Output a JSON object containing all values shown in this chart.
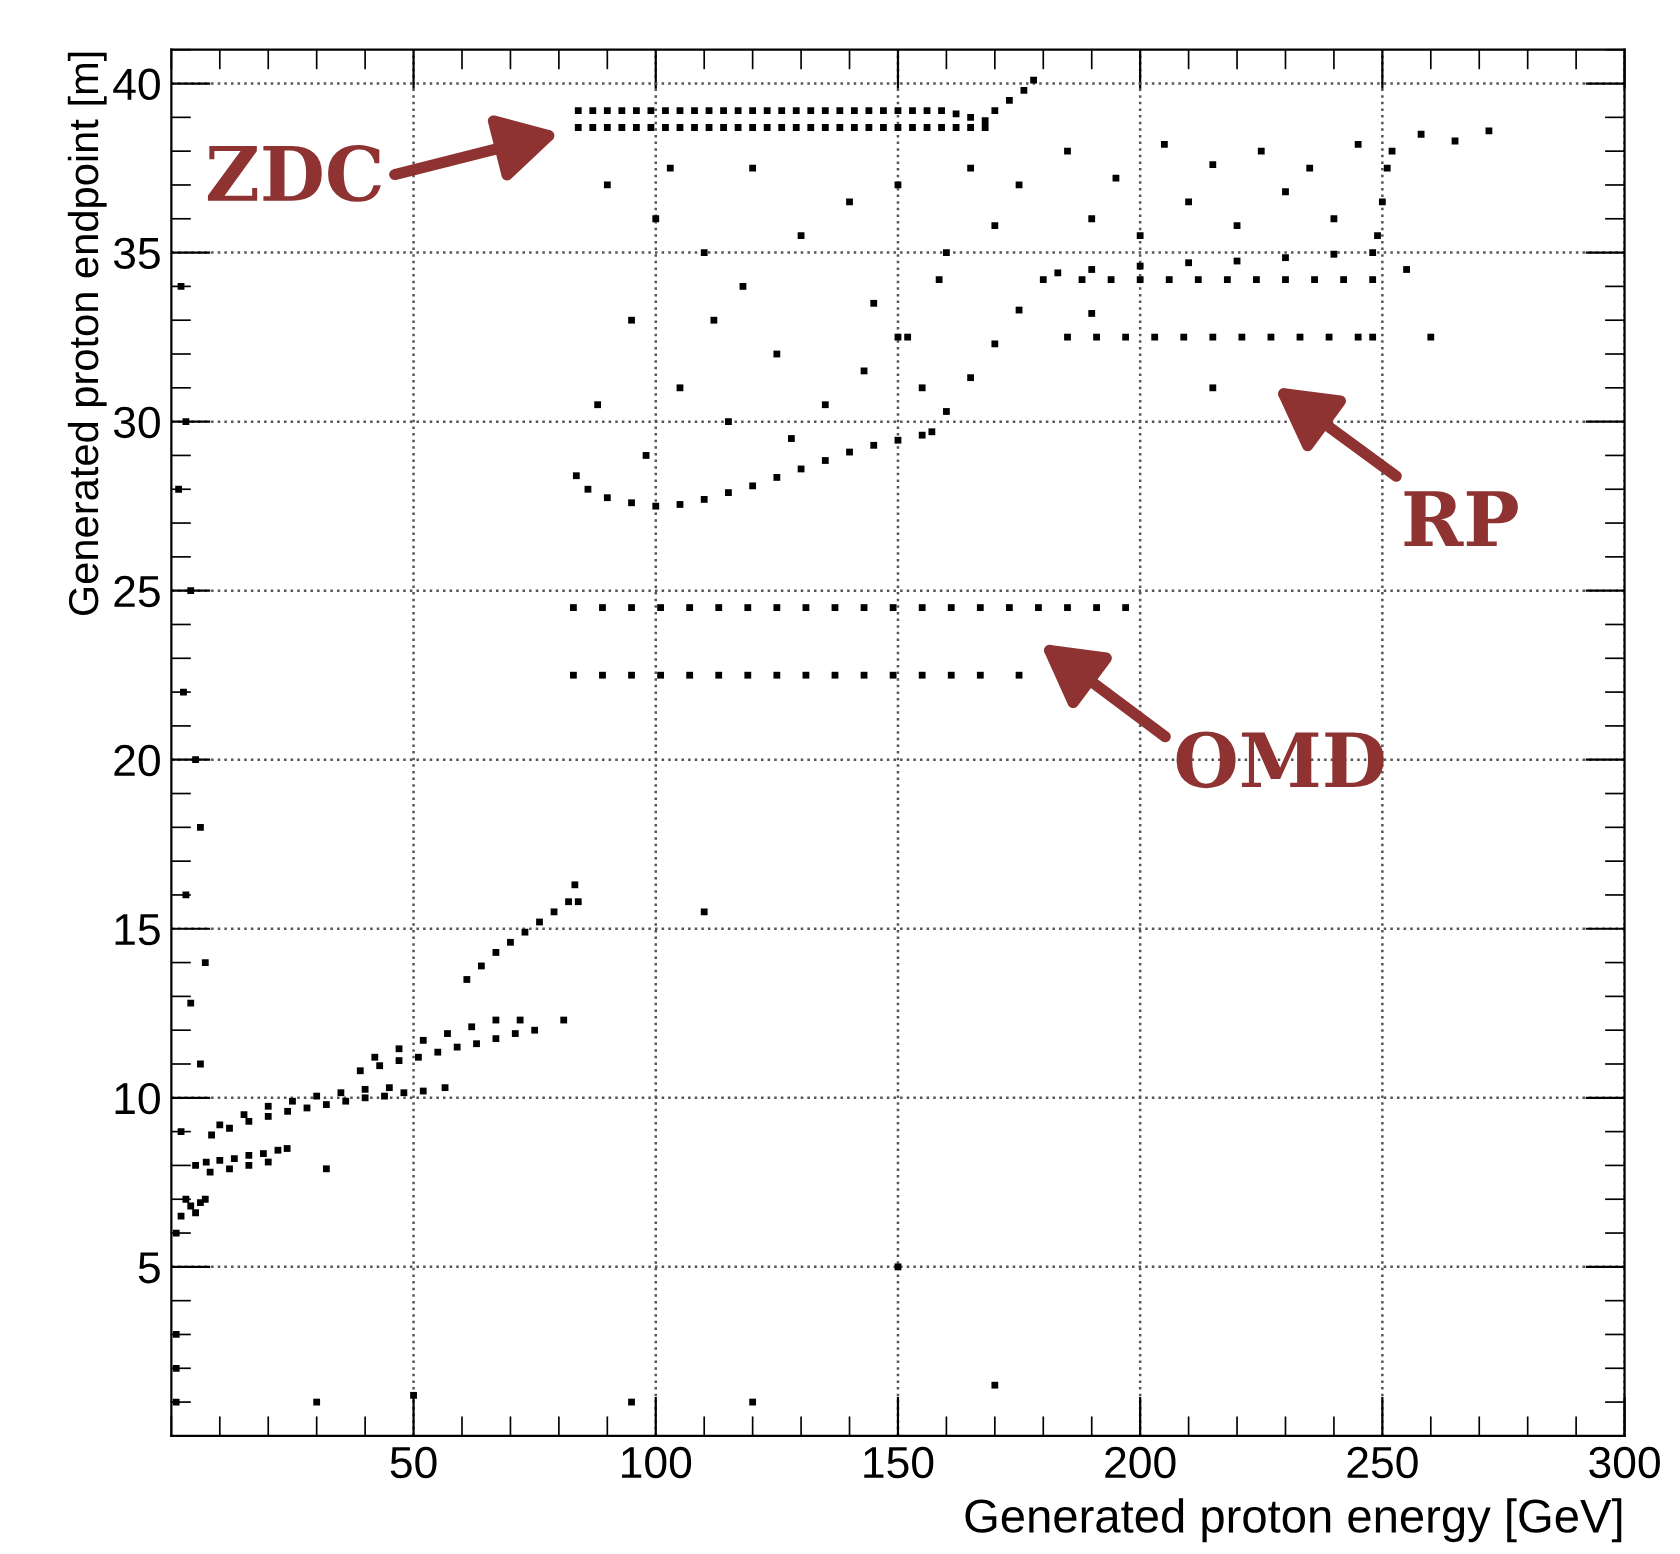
{
  "chart_data": {
    "type": "scatter",
    "xlabel": "Generated proton energy [GeV]",
    "ylabel": "Generated proton endpoint [m]",
    "xlim": [
      0,
      300
    ],
    "ylim": [
      0,
      41
    ],
    "xticks": [
      50,
      100,
      150,
      200,
      250,
      300
    ],
    "yticks": [
      5,
      10,
      15,
      20,
      25,
      30,
      35,
      40
    ],
    "grid": true,
    "marker": "square",
    "annotations": [
      "ZDC",
      "RP",
      "OMD"
    ],
    "series": [
      {
        "color": "#000000",
        "x": [
          84,
          87,
          90,
          93,
          96,
          99,
          102,
          105,
          108,
          111,
          114,
          117,
          120,
          123,
          126,
          129,
          132,
          135,
          138,
          141,
          144,
          147,
          150,
          153,
          156,
          159,
          162,
          165,
          168,
          84,
          87,
          90,
          93,
          96,
          99,
          102,
          105,
          108,
          111,
          114,
          117,
          120,
          123,
          126,
          129,
          132,
          135,
          138,
          141,
          144,
          147,
          150,
          153,
          156,
          159,
          162,
          165,
          168,
          170,
          173,
          176,
          178
        ],
        "values": [
          38.7,
          38.7,
          38.7,
          38.7,
          38.7,
          38.7,
          38.7,
          38.7,
          38.7,
          38.7,
          38.7,
          38.7,
          38.7,
          38.7,
          38.7,
          38.7,
          38.7,
          38.7,
          38.7,
          38.7,
          38.7,
          38.7,
          38.7,
          38.7,
          38.7,
          38.7,
          38.7,
          38.7,
          38.7,
          39.2,
          39.2,
          39.2,
          39.2,
          39.2,
          39.2,
          39.2,
          39.2,
          39.2,
          39.2,
          39.2,
          39.2,
          39.2,
          39.2,
          39.2,
          39.2,
          39.2,
          39.2,
          39.2,
          39.2,
          39.2,
          39.2,
          39.2,
          39.2,
          39.2,
          39.2,
          39.1,
          39.0,
          38.9,
          39.2,
          39.5,
          39.8,
          40.1
        ]
      },
      {
        "color": "#000000",
        "x": [
          83.6,
          86,
          90,
          95,
          100,
          105,
          110,
          115,
          120,
          125,
          130,
          135,
          140,
          145,
          150,
          155,
          157,
          160,
          165,
          170,
          175,
          180,
          183,
          190,
          200,
          210,
          220,
          230,
          240,
          248,
          249,
          250,
          251,
          252
        ],
        "values": [
          28.4,
          28.0,
          27.75,
          27.6,
          27.5,
          27.55,
          27.7,
          27.9,
          28.1,
          28.35,
          28.6,
          28.85,
          29.1,
          29.3,
          29.45,
          29.6,
          29.7,
          30.3,
          31.3,
          32.3,
          33.3,
          34.2,
          34.4,
          34.5,
          34.6,
          34.7,
          34.75,
          34.85,
          34.95,
          35.0,
          35.5,
          36.5,
          37.5,
          38.0
        ]
      },
      {
        "color": "#000000",
        "x": [
          188,
          194,
          200,
          206,
          212,
          218,
          224,
          230,
          236,
          242,
          248,
          185,
          191,
          197,
          203,
          209,
          215,
          221,
          227,
          233,
          239,
          245,
          248,
          150,
          152,
          158.5
        ],
        "values": [
          34.2,
          34.2,
          34.2,
          34.2,
          34.2,
          34.2,
          34.2,
          34.2,
          34.2,
          34.2,
          34.2,
          32.5,
          32.5,
          32.5,
          32.5,
          32.5,
          32.5,
          32.5,
          32.5,
          32.5,
          32.5,
          32.5,
          32.5,
          32.5,
          32.5,
          34.2
        ]
      },
      {
        "color": "#000000",
        "x": [
          83,
          89,
          95,
          101,
          107,
          113,
          119,
          125,
          131,
          137,
          143,
          149,
          155,
          161,
          167,
          173,
          179,
          185,
          191,
          197,
          83,
          89,
          95,
          101,
          107,
          113,
          119,
          125,
          131,
          137,
          143,
          149,
          155,
          161,
          167,
          175
        ],
        "values": [
          24.5,
          24.5,
          24.5,
          24.5,
          24.5,
          24.5,
          24.5,
          24.5,
          24.5,
          24.5,
          24.5,
          24.5,
          24.5,
          24.5,
          24.5,
          24.5,
          24.5,
          24.5,
          24.5,
          24.5,
          22.5,
          22.5,
          22.5,
          22.5,
          22.5,
          22.5,
          22.5,
          22.5,
          22.5,
          22.5,
          22.5,
          22.5,
          22.5,
          22.5,
          22.5,
          22.5
        ]
      },
      {
        "color": "#000000",
        "x": [
          8.3,
          12,
          16,
          20,
          24,
          28,
          32,
          36,
          40,
          44,
          48,
          52,
          56.5,
          10,
          15,
          20,
          25,
          30,
          35,
          40,
          45,
          39,
          43,
          47,
          51,
          55,
          59,
          63,
          67,
          71,
          75,
          81,
          42,
          47,
          52,
          57,
          62,
          67,
          72,
          7.2,
          10,
          13,
          16,
          19,
          22,
          23.9,
          8,
          12,
          16,
          20,
          61,
          64,
          67,
          70,
          73,
          76,
          79,
          82,
          83.3,
          84,
          1,
          2,
          3,
          4,
          5,
          6,
          7
        ],
        "values": [
          8.9,
          9.1,
          9.3,
          9.45,
          9.6,
          9.7,
          9.8,
          9.9,
          10.0,
          10.05,
          10.15,
          10.2,
          10.3,
          9.2,
          9.5,
          9.75,
          9.9,
          10.05,
          10.15,
          10.25,
          10.3,
          10.8,
          10.95,
          11.1,
          11.2,
          11.35,
          11.5,
          11.6,
          11.75,
          11.9,
          12.0,
          12.3,
          11.2,
          11.45,
          11.7,
          11.9,
          12.1,
          12.3,
          12.3,
          8.1,
          8.15,
          8.2,
          8.3,
          8.35,
          8.45,
          8.5,
          7.8,
          7.9,
          8.0,
          8.1,
          13.5,
          13.9,
          14.3,
          14.6,
          14.9,
          15.2,
          15.5,
          15.8,
          16.3,
          15.8,
          6.0,
          6.5,
          7.0,
          6.8,
          6.6,
          6.9,
          7.0
        ]
      },
      {
        "color": "#000000",
        "x": [
          2,
          3,
          1.5,
          4,
          2.5,
          5,
          6,
          3,
          7,
          4,
          6,
          2,
          5,
          1,
          1,
          1,
          90,
          95,
          100,
          105,
          110,
          115,
          120,
          125,
          130,
          135,
          140,
          145,
          150,
          155,
          160,
          165,
          170,
          88,
          98,
          112,
          128,
          143,
          118,
          103,
          175,
          185,
          190,
          195,
          200,
          205,
          210,
          215,
          220,
          225,
          230,
          235,
          240,
          245,
          258,
          265,
          272,
          260,
          255,
          190,
          170,
          150,
          110,
          120,
          30,
          50,
          95,
          215,
          32
        ],
        "values": [
          34,
          30,
          28,
          25,
          22,
          20,
          18,
          16,
          14,
          12.8,
          11,
          9,
          8,
          3,
          2,
          1,
          37,
          33,
          36,
          31,
          35,
          30,
          37.5,
          32,
          35.5,
          30.5,
          36.5,
          33.5,
          37,
          31,
          35,
          37.5,
          35.8,
          30.5,
          29,
          33,
          29.5,
          31.5,
          34,
          37.5,
          37,
          38,
          36,
          37.2,
          35.5,
          38.2,
          36.5,
          37.6,
          35.8,
          38,
          36.8,
          37.5,
          36,
          38.2,
          38.5,
          38.3,
          38.6,
          32.5,
          34.5,
          33.2,
          1.5,
          5,
          15.5,
          1,
          1,
          1.2,
          1,
          31,
          7.9
        ]
      }
    ]
  }
}
